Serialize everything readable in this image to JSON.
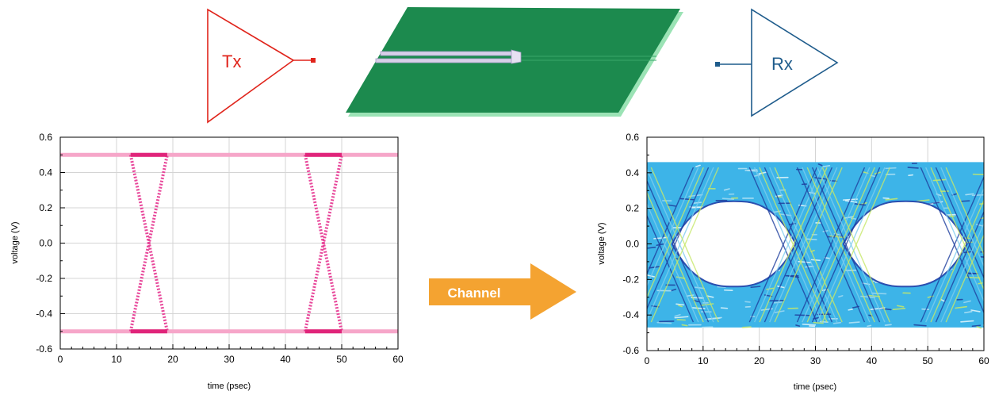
{
  "tx": {
    "label": "Tx",
    "color": "#e0241b"
  },
  "rx": {
    "label": "Rx",
    "color": "#1f5c8c"
  },
  "board": {
    "color": "#1c8a4e",
    "edge_color": "#9be3b5"
  },
  "channel_arrow": {
    "label": "Channel",
    "color": "#f4a331"
  },
  "chart_data": [
    {
      "type": "scatter",
      "subject": "Tx eye diagram",
      "title": "",
      "xlabel": "time (psec)",
      "ylabel": "voltage (V)",
      "xlim": [
        0,
        60
      ],
      "ylim": [
        -0.6,
        0.6
      ],
      "x_ticks": [
        "0",
        "10",
        "20",
        "30",
        "40",
        "50",
        "60"
      ],
      "y_ticks": [
        "-0.6",
        "-0.4",
        "-0.2",
        "0.0",
        "0.2",
        "0.4",
        "0.6"
      ],
      "grid": true,
      "color": "#e8479a",
      "levels": {
        "high": 0.5,
        "low": -0.5
      },
      "transitions": [
        {
          "start": 12.5,
          "end": 19
        },
        {
          "start": 43.5,
          "end": 50
        }
      ]
    },
    {
      "type": "scatter",
      "subject": "Rx eye diagram",
      "title": "",
      "xlabel": "time (psec)",
      "ylabel": "voltage (V)",
      "xlim": [
        0,
        60
      ],
      "ylim": [
        -0.6,
        0.6
      ],
      "x_ticks": [
        "0",
        "10",
        "20",
        "30",
        "40",
        "50",
        "60"
      ],
      "y_ticks": [
        "-0.6",
        "-0.4",
        "-0.2",
        "0.0",
        "0.2",
        "0.4",
        "0.6"
      ],
      "grid": true,
      "color": "#3db4e8",
      "envelope": {
        "top": 0.46,
        "bottom": -0.47
      },
      "eye_openings": [
        {
          "center": 15.5,
          "half_width": 11,
          "high": 0.24,
          "low": -0.24
        },
        {
          "center": 46,
          "half_width": 11,
          "high": 0.24,
          "low": -0.24
        }
      ]
    }
  ]
}
